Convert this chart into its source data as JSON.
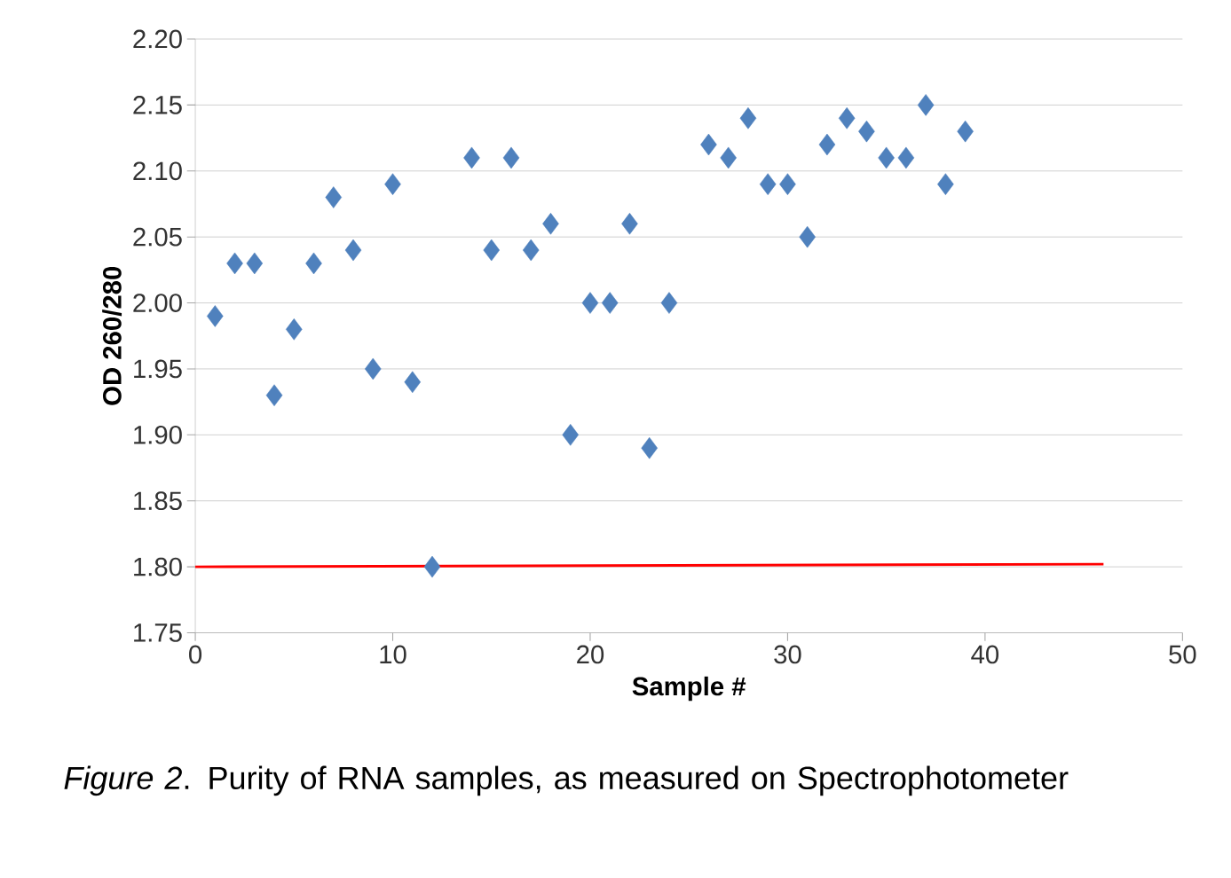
{
  "chart_data": {
    "type": "scatter",
    "xlabel": "Sample #",
    "ylabel": "OD 260/280",
    "xlim": [
      0,
      50
    ],
    "ylim": [
      1.75,
      2.2
    ],
    "xticks": [
      0,
      10,
      20,
      30,
      40,
      50
    ],
    "yticks": [
      {
        "value": 1.75,
        "label": "1.75"
      },
      {
        "value": 1.8,
        "label": "1.80"
      },
      {
        "value": 1.85,
        "label": "1.85"
      },
      {
        "value": 1.9,
        "label": "1.90"
      },
      {
        "value": 1.95,
        "label": "1.95"
      },
      {
        "value": 2.0,
        "label": "2.00"
      },
      {
        "value": 2.05,
        "label": "2.05"
      },
      {
        "value": 2.1,
        "label": "2.10"
      },
      {
        "value": 2.15,
        "label": "2.15"
      },
      {
        "value": 2.2,
        "label": "2.20"
      }
    ],
    "grid": "y",
    "series": [
      {
        "color": "#4f81bd",
        "marker": "diamond",
        "x": [
          1,
          2,
          3,
          4,
          5,
          6,
          7,
          8,
          9,
          10,
          11,
          12,
          14,
          15,
          16,
          17,
          18,
          19,
          20,
          21,
          22,
          23,
          24,
          26,
          27,
          28,
          29,
          30,
          31,
          32,
          33,
          34,
          35,
          36,
          37,
          38,
          39
        ],
        "values": [
          1.99,
          2.03,
          2.03,
          1.93,
          1.98,
          2.03,
          2.08,
          2.04,
          1.95,
          2.09,
          1.94,
          1.8,
          2.11,
          2.04,
          2.11,
          2.04,
          2.06,
          1.9,
          2.0,
          2.0,
          2.06,
          1.89,
          2.0,
          2.12,
          2.11,
          2.14,
          2.09,
          2.09,
          2.05,
          2.12,
          2.14,
          2.13,
          2.11,
          2.11,
          2.15,
          2.09,
          2.13
        ]
      },
      {
        "type": "line",
        "marker": "none",
        "color": "#ff0000",
        "x": [
          0,
          46
        ],
        "values": [
          1.8,
          1.802
        ]
      }
    ],
    "annotations": [
      "*Figure 2*. Purity of RNA samples, as measured on Spectrophotometer"
    ]
  }
}
